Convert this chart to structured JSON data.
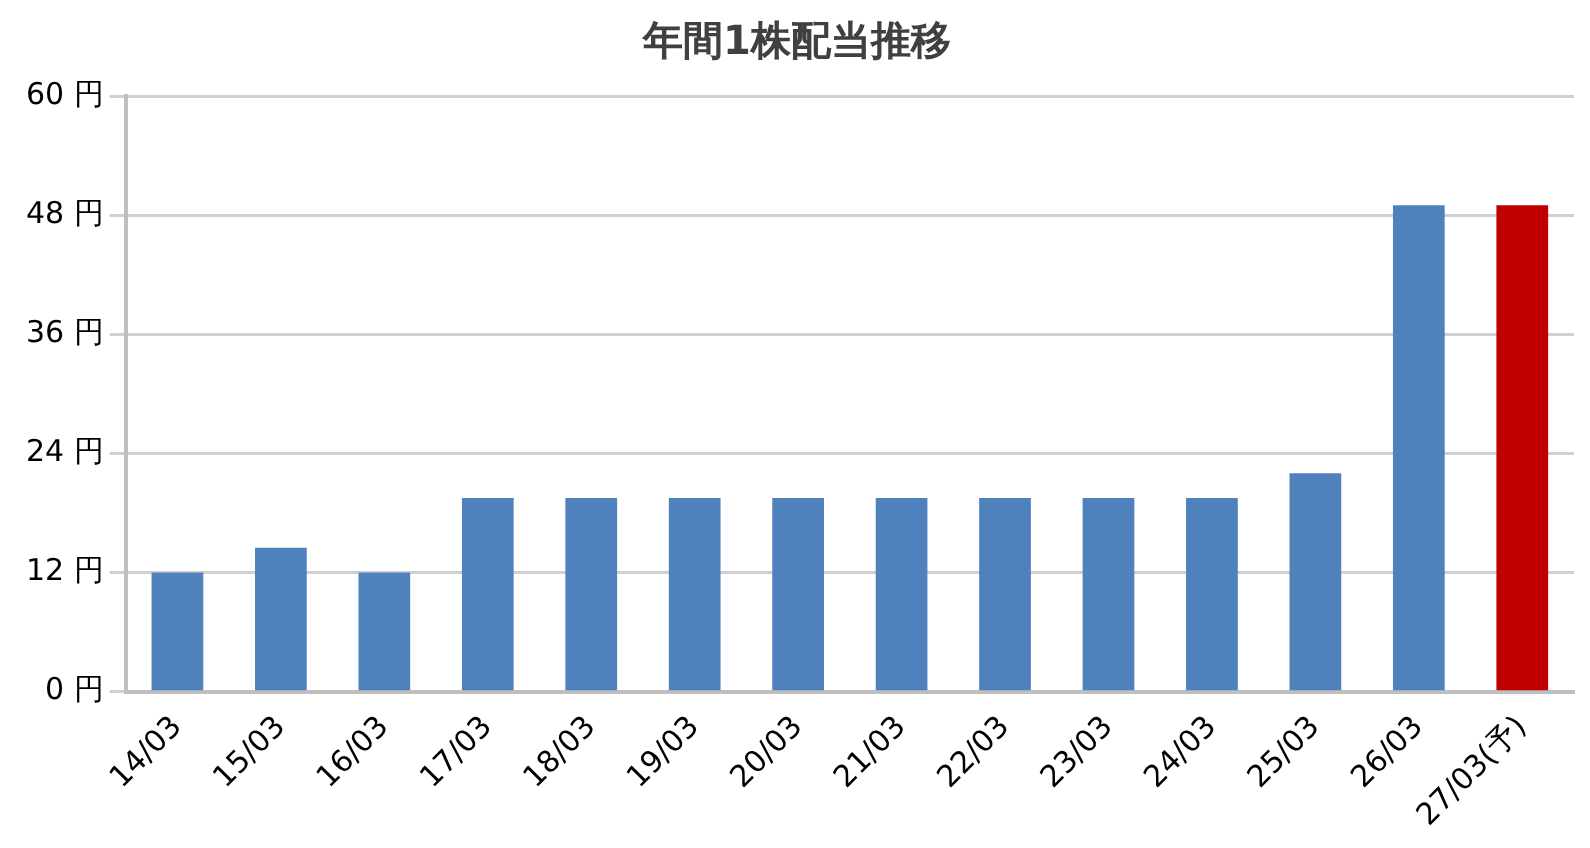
{
  "chart_data": {
    "type": "bar",
    "title": "年間1株配当推移",
    "categories": [
      "14/03",
      "15/03",
      "16/03",
      "17/03",
      "18/03",
      "19/03",
      "20/03",
      "21/03",
      "22/03",
      "23/03",
      "24/03",
      "25/03",
      "26/03",
      "27/03(予)"
    ],
    "values": [
      12,
      14.5,
      12,
      19.5,
      19.5,
      19.5,
      19.5,
      19.5,
      19.5,
      19.5,
      19.5,
      22,
      49,
      49
    ],
    "colors": [
      "#4f81bd",
      "#4f81bd",
      "#4f81bd",
      "#4f81bd",
      "#4f81bd",
      "#4f81bd",
      "#4f81bd",
      "#4f81bd",
      "#4f81bd",
      "#4f81bd",
      "#4f81bd",
      "#4f81bd",
      "#4f81bd",
      "#c00000"
    ],
    "ylim": [
      0,
      60
    ],
    "yticks": [
      {
        "value": 0,
        "label": "0 円"
      },
      {
        "value": 12,
        "label": "12 円"
      },
      {
        "value": 24,
        "label": "24 円"
      },
      {
        "value": 36,
        "label": "36 円"
      },
      {
        "value": 48,
        "label": "48 円"
      },
      {
        "value": 60,
        "label": "60 円"
      }
    ],
    "grid": "y",
    "legend": false
  }
}
